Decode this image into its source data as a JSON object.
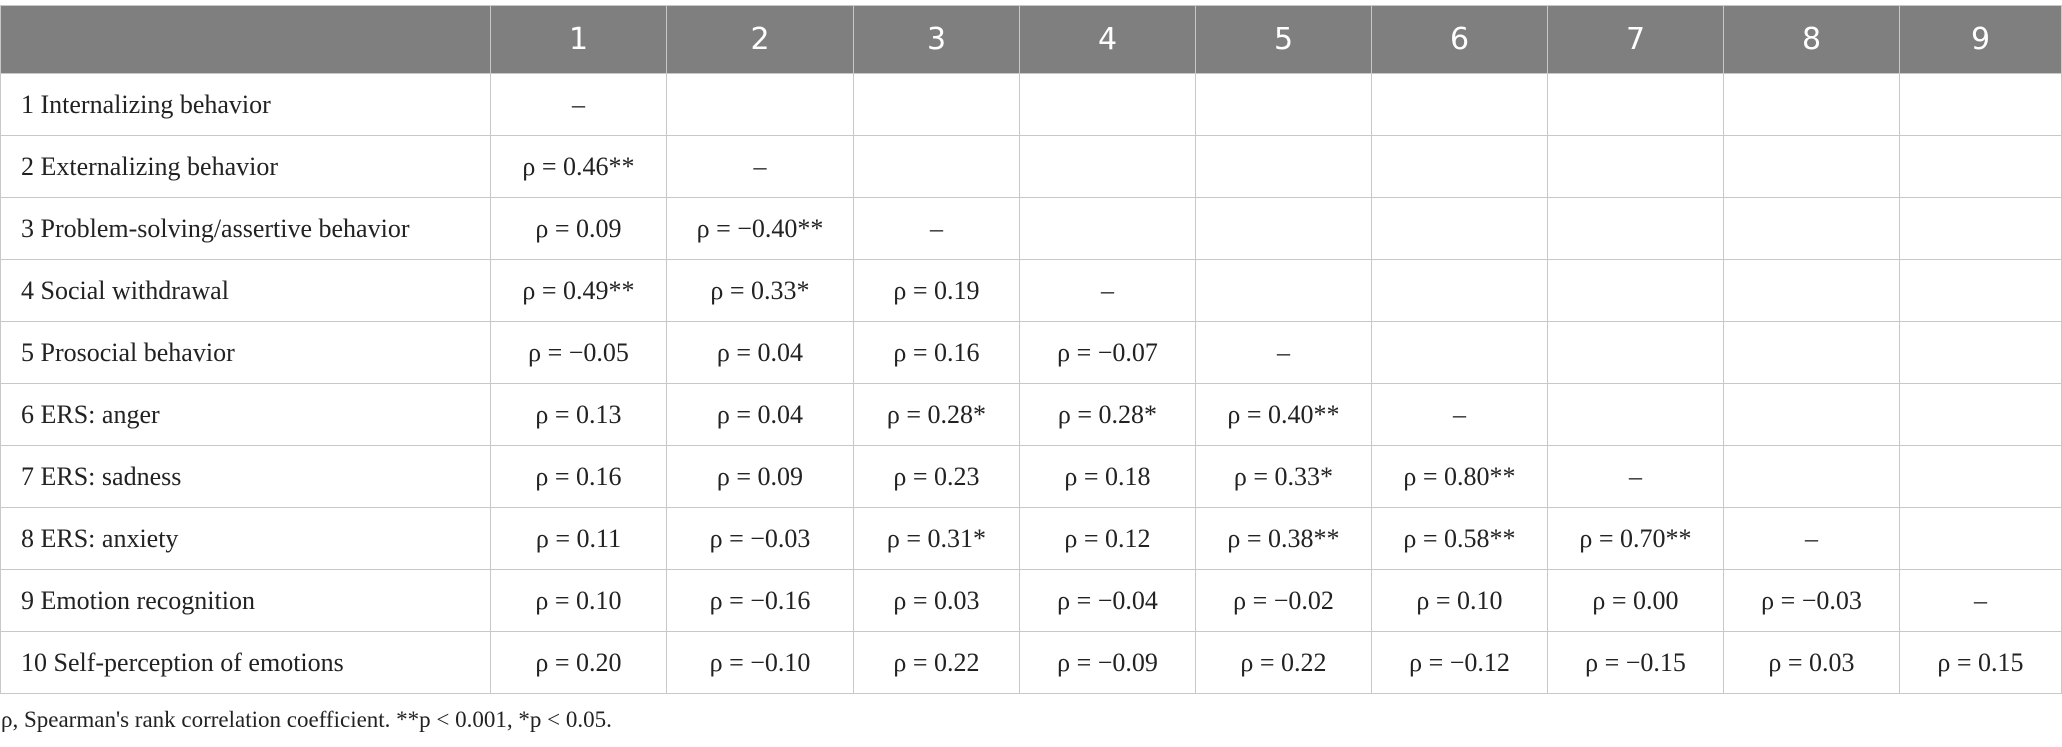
{
  "table": {
    "header": [
      "1",
      "2",
      "3",
      "4",
      "5",
      "6",
      "7",
      "8",
      "9"
    ],
    "rows": [
      {
        "label": "1 Internalizing behavior",
        "cells": [
          "–"
        ]
      },
      {
        "label": "2 Externalizing behavior",
        "cells": [
          "ρ = 0.46**",
          "–"
        ]
      },
      {
        "label": "3 Problem-solving/assertive behavior",
        "cells": [
          "ρ = 0.09",
          "ρ = −0.40**",
          "–"
        ]
      },
      {
        "label": "4 Social withdrawal",
        "cells": [
          "ρ = 0.49**",
          "ρ = 0.33*",
          "ρ = 0.19",
          "–"
        ]
      },
      {
        "label": "5 Prosocial behavior",
        "cells": [
          "ρ = −0.05",
          "ρ = 0.04",
          "ρ = 0.16",
          "ρ = −0.07",
          "–"
        ]
      },
      {
        "label": "6 ERS: anger",
        "cells": [
          "ρ = 0.13",
          "ρ = 0.04",
          "ρ = 0.28*",
          "ρ = 0.28*",
          "ρ = 0.40**",
          "–"
        ]
      },
      {
        "label": "7 ERS: sadness",
        "cells": [
          "ρ = 0.16",
          "ρ = 0.09",
          "ρ = 0.23",
          "ρ = 0.18",
          "ρ = 0.33*",
          "ρ = 0.80**",
          "–"
        ]
      },
      {
        "label": "8 ERS: anxiety",
        "cells": [
          "ρ = 0.11",
          "ρ = −0.03",
          "ρ = 0.31*",
          "ρ = 0.12",
          "ρ = 0.38**",
          "ρ = 0.58**",
          "ρ = 0.70**",
          "–"
        ]
      },
      {
        "label": "9 Emotion recognition",
        "cells": [
          "ρ = 0.10",
          "ρ = −0.16",
          "ρ = 0.03",
          "ρ = −0.04",
          "ρ = −0.02",
          "ρ = 0.10",
          "ρ = 0.00",
          "ρ = −0.03",
          "–"
        ]
      },
      {
        "label": "10 Self-perception of emotions",
        "cells": [
          "ρ = 0.20",
          "ρ = −0.10",
          "ρ = 0.22",
          "ρ = −0.09",
          "ρ = 0.22",
          "ρ = −0.12",
          "ρ = −0.15",
          "ρ = 0.03",
          "ρ = 0.15"
        ]
      }
    ]
  },
  "footnote": "ρ, Spearman's rank correlation coefficient. **p < 0.001, *p < 0.05."
}
